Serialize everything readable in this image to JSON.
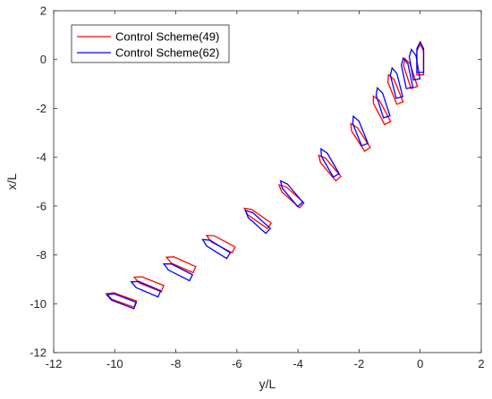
{
  "chart_data": {
    "type": "line",
    "title": "",
    "xlabel": "y/L",
    "ylabel": "x/L",
    "xlim": [
      -12,
      2
    ],
    "ylim": [
      -12,
      2
    ],
    "x_ticks": [
      -12,
      -10,
      -8,
      -6,
      -4,
      -2,
      0,
      2
    ],
    "y_ticks": [
      2,
      0,
      -2,
      -4,
      -6,
      -8,
      -10,
      -12
    ],
    "grid": false,
    "legend_position": "top-left",
    "series": [
      {
        "name": "Control Scheme(49)",
        "color": "#ff0000",
        "snapshots": [
          {
            "cx": 0.0,
            "cy": 0.0,
            "heading_deg": 0
          },
          {
            "cx": -0.35,
            "cy": -0.55,
            "heading_deg": -18
          },
          {
            "cx": -0.85,
            "cy": -1.2,
            "heading_deg": -22
          },
          {
            "cx": -1.3,
            "cy": -2.05,
            "heading_deg": -28
          },
          {
            "cx": -2.0,
            "cy": -3.15,
            "heading_deg": -33
          },
          {
            "cx": -3.0,
            "cy": -4.4,
            "heading_deg": -40
          },
          {
            "cx": -4.25,
            "cy": -5.55,
            "heading_deg": -48
          },
          {
            "cx": -5.35,
            "cy": -6.45,
            "heading_deg": -55
          },
          {
            "cx": -6.55,
            "cy": -7.5,
            "heading_deg": -62
          },
          {
            "cx": -7.85,
            "cy": -8.35,
            "heading_deg": -66
          },
          {
            "cx": -8.9,
            "cy": -9.15,
            "heading_deg": -68
          },
          {
            "cx": -9.8,
            "cy": -9.8,
            "heading_deg": -70
          }
        ]
      },
      {
        "name": "Control Scheme(62)",
        "color": "#0000ff",
        "snapshots": [
          {
            "cx": 0.0,
            "cy": 0.1,
            "heading_deg": 0
          },
          {
            "cx": -0.2,
            "cy": -0.2,
            "heading_deg": -10
          },
          {
            "cx": -0.45,
            "cy": -0.55,
            "heading_deg": -12
          },
          {
            "cx": -0.8,
            "cy": -0.95,
            "heading_deg": -14
          },
          {
            "cx": -1.25,
            "cy": -1.75,
            "heading_deg": -18
          },
          {
            "cx": -2.0,
            "cy": -2.9,
            "heading_deg": -22
          },
          {
            "cx": -3.0,
            "cy": -4.2,
            "heading_deg": -30
          },
          {
            "cx": -4.25,
            "cy": -5.45,
            "heading_deg": -40
          },
          {
            "cx": -5.35,
            "cy": -6.6,
            "heading_deg": -48
          },
          {
            "cx": -6.7,
            "cy": -7.7,
            "heading_deg": -58
          },
          {
            "cx": -7.95,
            "cy": -8.65,
            "heading_deg": -63
          },
          {
            "cx": -9.0,
            "cy": -9.35,
            "heading_deg": -67
          },
          {
            "cx": -9.8,
            "cy": -9.85,
            "heading_deg": -69
          }
        ]
      }
    ]
  }
}
